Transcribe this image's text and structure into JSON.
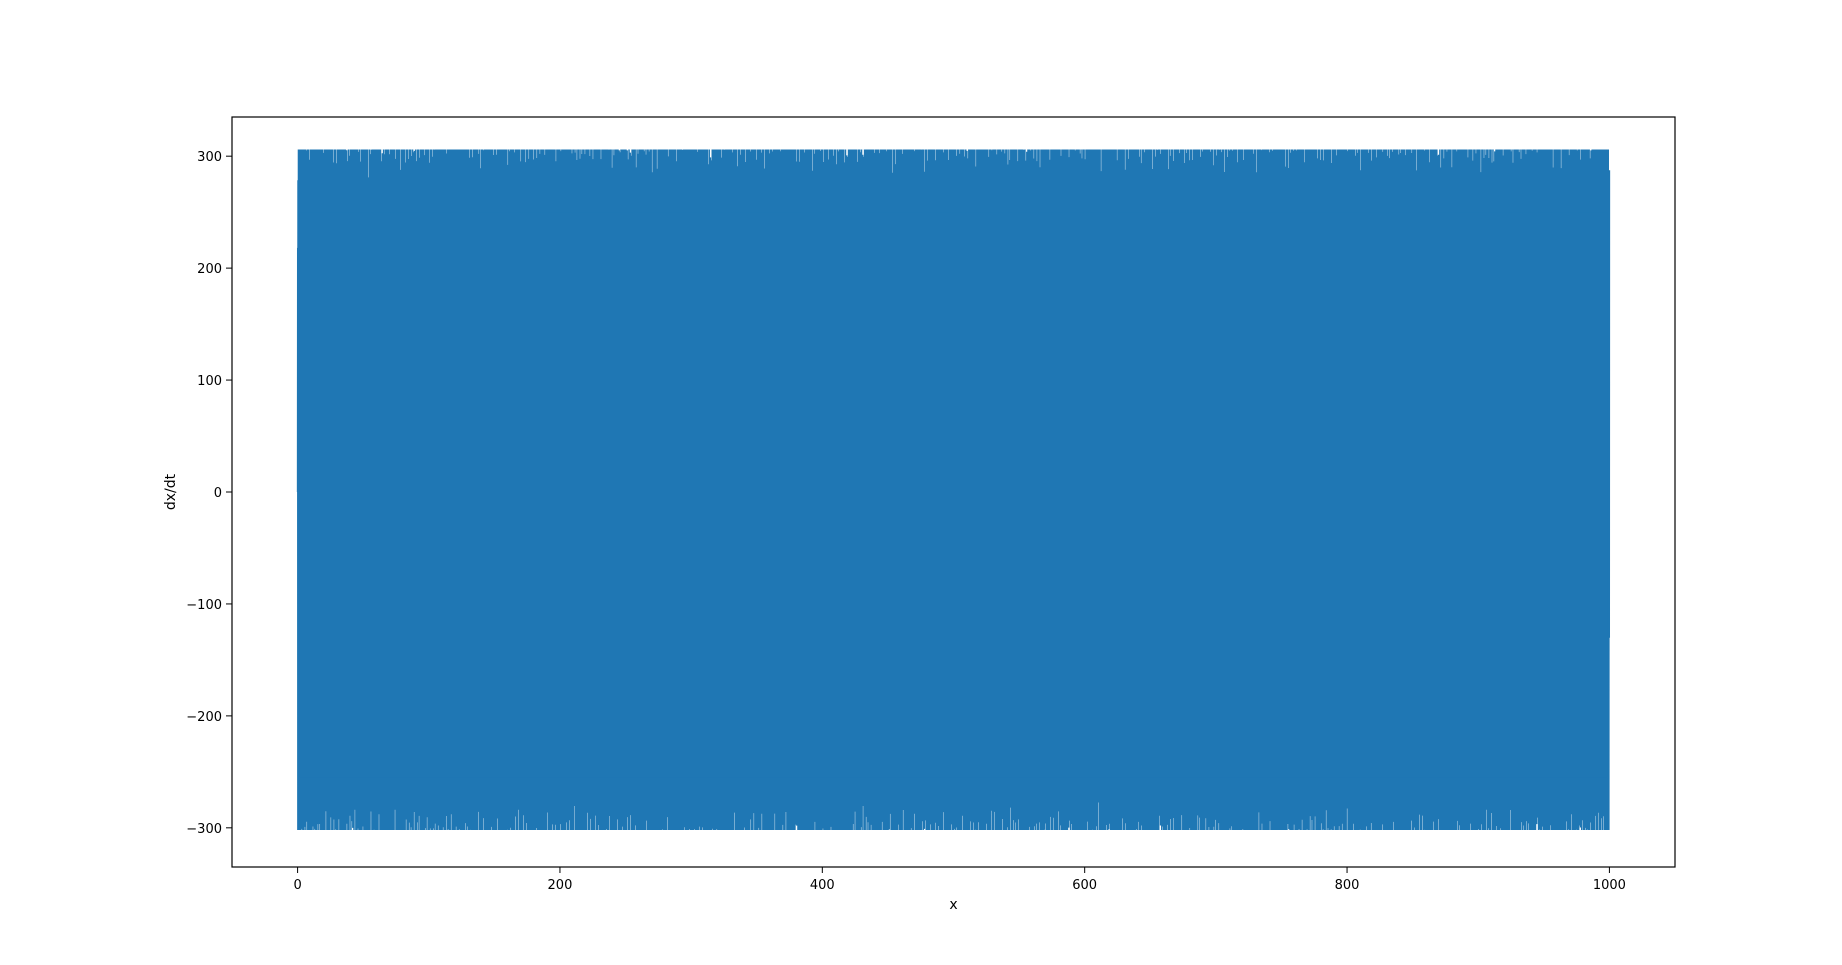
{
  "chart_data": {
    "type": "line",
    "title": "",
    "xlabel": "x",
    "ylabel": "dx/dt",
    "xlim": [
      -50,
      1050
    ],
    "ylim": [
      -335,
      335
    ],
    "x_ticks": [
      0,
      200,
      400,
      600,
      800,
      1000
    ],
    "x_tick_labels": [
      "0",
      "200",
      "400",
      "600",
      "800",
      "1000"
    ],
    "y_ticks": [
      -300,
      -200,
      -100,
      0,
      100,
      200,
      300
    ],
    "y_tick_labels": [
      "−300",
      "−200",
      "−100",
      "0",
      "100",
      "200",
      "300"
    ],
    "grid": false,
    "legend": "none",
    "series": [
      {
        "color": "#1f77b4",
        "x_range": [
          0,
          1000
        ],
        "y_range": [
          -302,
          306
        ],
        "description_values": {
          "x_start": 0,
          "x_end": 1000,
          "oscillation_envelope_min": -302,
          "oscillation_envelope_max": 306
        }
      }
    ]
  }
}
